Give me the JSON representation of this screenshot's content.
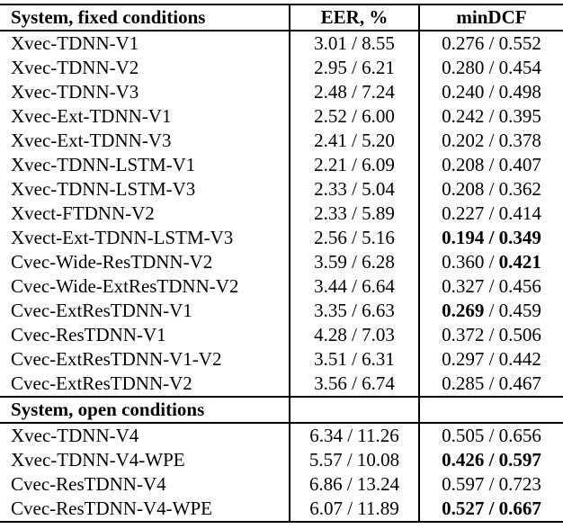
{
  "page": {
    "background": "#ffffff",
    "text_color": "#000000",
    "rule_color": "#000000"
  },
  "table": {
    "separator": " / ",
    "header": {
      "system": "System, fixed conditions",
      "eer": "EER, %",
      "mindcf": "minDCF"
    },
    "open_section_title": "System, open conditions",
    "fixed_rows": [
      {
        "system": "Xvec-TDNN-V1",
        "eer": "3.01 / 8.55",
        "dcf1": "0.276",
        "dcf1_bold": false,
        "dcf2": "0.552",
        "dcf2_bold": false
      },
      {
        "system": "Xvec-TDNN-V2",
        "eer": "2.95 / 6.21",
        "dcf1": "0.280",
        "dcf1_bold": false,
        "dcf2": "0.454",
        "dcf2_bold": false
      },
      {
        "system": "Xvec-TDNN-V3",
        "eer": "2.48 / 7.24",
        "dcf1": "0.240",
        "dcf1_bold": false,
        "dcf2": "0.498",
        "dcf2_bold": false
      },
      {
        "system": "Xvec-Ext-TDNN-V1",
        "eer": "2.52 / 6.00",
        "dcf1": "0.242",
        "dcf1_bold": false,
        "dcf2": "0.395",
        "dcf2_bold": false
      },
      {
        "system": "Xvec-Ext-TDNN-V3",
        "eer": "2.41 / 5.20",
        "dcf1": "0.202",
        "dcf1_bold": false,
        "dcf2": "0.378",
        "dcf2_bold": false
      },
      {
        "system": "Xvec-TDNN-LSTM-V1",
        "eer": "2.21 / 6.09",
        "dcf1": "0.208",
        "dcf1_bold": false,
        "dcf2": "0.407",
        "dcf2_bold": false
      },
      {
        "system": "Xvec-TDNN-LSTM-V3",
        "eer": "2.33 / 5.04",
        "dcf1": "0.208",
        "dcf1_bold": false,
        "dcf2": "0.362",
        "dcf2_bold": false
      },
      {
        "system": "Xvect-FTDNN-V2",
        "eer": "2.33 / 5.89",
        "dcf1": "0.227",
        "dcf1_bold": false,
        "dcf2": "0.414",
        "dcf2_bold": false
      },
      {
        "system": "Xvect-Ext-TDNN-LSTM-V3",
        "eer": "2.56 / 5.16",
        "dcf1": "0.194",
        "dcf1_bold": true,
        "dcf2": "0.349",
        "dcf2_bold": true
      },
      {
        "system": "Cvec-Wide-ResTDNN-V2",
        "eer": "3.59 / 6.28",
        "dcf1": "0.360",
        "dcf1_bold": false,
        "dcf2": "0.421",
        "dcf2_bold": true
      },
      {
        "system": "Cvec-Wide-ExtResTDNN-V2",
        "eer": "3.44 / 6.64",
        "dcf1": "0.327",
        "dcf1_bold": false,
        "dcf2": "0.456",
        "dcf2_bold": false
      },
      {
        "system": "Cvec-ExtResTDNN-V1",
        "eer": "3.35 / 6.63",
        "dcf1": "0.269",
        "dcf1_bold": true,
        "dcf2": "0.459",
        "dcf2_bold": false
      },
      {
        "system": "Cvec-ResTDNN-V1",
        "eer": "4.28 / 7.03",
        "dcf1": "0.372",
        "dcf1_bold": false,
        "dcf2": "0.506",
        "dcf2_bold": false
      },
      {
        "system": "Cvec-ExtResTDNN-V1-V2",
        "eer": "3.51 / 6.31",
        "dcf1": "0.297",
        "dcf1_bold": false,
        "dcf2": "0.442",
        "dcf2_bold": false
      },
      {
        "system": "Cvec-ExtResTDNN-V2",
        "eer": "3.56 / 6.74",
        "dcf1": "0.285",
        "dcf1_bold": false,
        "dcf2": "0.467",
        "dcf2_bold": false
      }
    ],
    "open_rows": [
      {
        "system": "Xvec-TDNN-V4",
        "eer": "6.34 / 11.26",
        "dcf1": "0.505",
        "dcf1_bold": false,
        "dcf2": "0.656",
        "dcf2_bold": false
      },
      {
        "system": "Xvec-TDNN-V4-WPE",
        "eer": "5.57 / 10.08",
        "dcf1": "0.426",
        "dcf1_bold": true,
        "dcf2": "0.597",
        "dcf2_bold": true
      },
      {
        "system": "Cvec-ResTDNN-V4",
        "eer": "6.86 / 13.24",
        "dcf1": "0.597",
        "dcf1_bold": false,
        "dcf2": "0.723",
        "dcf2_bold": false
      },
      {
        "system": "Cvec-ResTDNN-V4-WPE",
        "eer": "6.07 / 11.89",
        "dcf1": "0.527",
        "dcf1_bold": true,
        "dcf2": "0.667",
        "dcf2_bold": true
      }
    ]
  }
}
